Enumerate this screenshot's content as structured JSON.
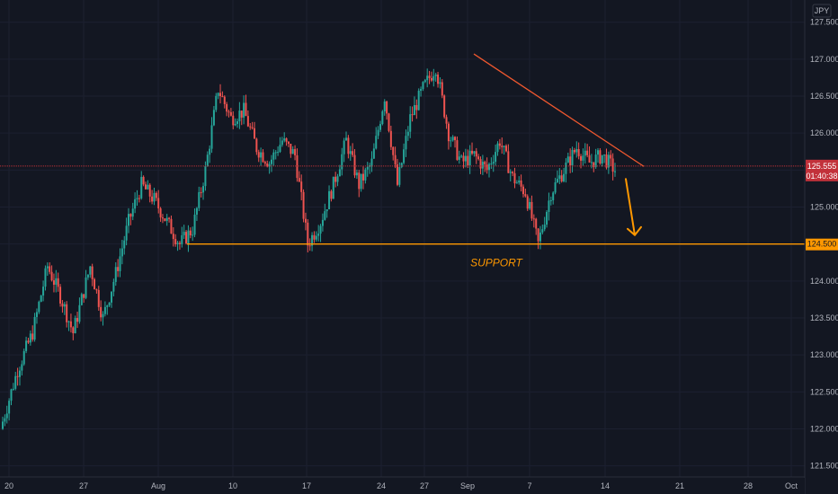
{
  "header": {
    "currency": "JPY"
  },
  "colors": {
    "background": "#131722",
    "grid": "#1c2030",
    "up": "#26a69a",
    "down": "#ef5350",
    "support": "#ff9800",
    "trendline": "#f0582f",
    "price_line": "#c2313a",
    "axis_text": "#b2b5be",
    "axis_line": "#2a2e39"
  },
  "chart_data": {
    "type": "candlestick",
    "y_range": [
      121.35,
      127.8
    ],
    "y_ticks": [
      "127.500",
      "127.000",
      "126.500",
      "126.000",
      "125.500",
      "125.000",
      "124.500",
      "124.000",
      "123.500",
      "123.000",
      "122.500",
      "122.000",
      "121.500"
    ],
    "y_tick_values": [
      127.5,
      127.0,
      126.5,
      126.0,
      125.5,
      125.0,
      124.5,
      124.0,
      123.5,
      123.0,
      122.5,
      122.0,
      121.5
    ],
    "x_ticks": [
      "20",
      "27",
      "Aug",
      "10",
      "17",
      "24",
      "27",
      "Sep",
      "7",
      "14",
      "21",
      "28",
      "Oct"
    ],
    "current_price": {
      "value": 125.555,
      "label": "125.555",
      "countdown": "01:40:38"
    },
    "support": {
      "value": 124.5,
      "label": "124.500",
      "text": "SUPPORT"
    },
    "path_keypoints": [
      [
        0,
        122.0
      ],
      [
        8,
        122.8
      ],
      [
        15,
        123.3
      ],
      [
        22,
        124.2
      ],
      [
        28,
        123.8
      ],
      [
        34,
        123.3
      ],
      [
        42,
        124.2
      ],
      [
        48,
        123.5
      ],
      [
        54,
        124.1
      ],
      [
        60,
        124.8
      ],
      [
        66,
        125.3
      ],
      [
        72,
        125.1
      ],
      [
        78,
        124.8
      ],
      [
        84,
        124.5
      ],
      [
        90,
        124.7
      ],
      [
        96,
        125.5
      ],
      [
        102,
        126.6
      ],
      [
        108,
        126.2
      ],
      [
        114,
        126.3
      ],
      [
        120,
        125.8
      ],
      [
        126,
        125.6
      ],
      [
        132,
        125.9
      ],
      [
        138,
        125.7
      ],
      [
        144,
        124.5
      ],
      [
        150,
        124.8
      ],
      [
        156,
        125.3
      ],
      [
        162,
        125.9
      ],
      [
        168,
        125.3
      ],
      [
        174,
        125.6
      ],
      [
        180,
        126.5
      ],
      [
        186,
        125.3
      ],
      [
        192,
        126.2
      ],
      [
        198,
        126.6
      ],
      [
        204,
        126.9
      ],
      [
        210,
        126.0
      ],
      [
        216,
        125.6
      ],
      [
        222,
        125.7
      ],
      [
        228,
        125.5
      ],
      [
        234,
        125.9
      ],
      [
        240,
        125.4
      ],
      [
        246,
        125.2
      ],
      [
        252,
        124.5
      ],
      [
        258,
        125.2
      ],
      [
        264,
        125.5
      ],
      [
        270,
        125.8
      ],
      [
        276,
        125.6
      ],
      [
        282,
        125.7
      ],
      [
        288,
        125.5
      ]
    ],
    "candle_count": 288
  }
}
